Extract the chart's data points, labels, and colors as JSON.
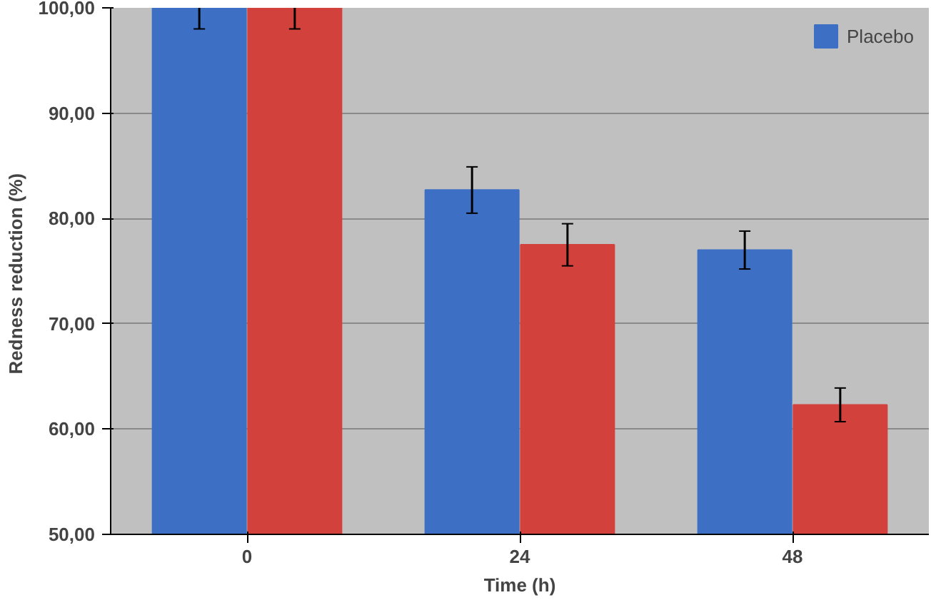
{
  "chart_data": {
    "type": "bar",
    "xlabel": "Time (h)",
    "ylabel": "Redness  reduction (%)",
    "categories": [
      "0",
      "24",
      "48"
    ],
    "series": [
      {
        "name": "Placebo",
        "color": "#3d6fc4",
        "values": [
          100,
          82.7,
          77.0
        ],
        "errors": [
          2,
          2.2,
          1.8
        ]
      },
      {
        "color": "#d2413c",
        "values": [
          100,
          77.5,
          62.3
        ],
        "errors": [
          2,
          2.0,
          1.6
        ]
      }
    ],
    "ylim": [
      50,
      100
    ],
    "yticks": [
      {
        "value": 50,
        "label": "50,00"
      },
      {
        "value": 60,
        "label": "60,00"
      },
      {
        "value": 70,
        "label": "70,00"
      },
      {
        "value": 80,
        "label": "80,00"
      },
      {
        "value": 90,
        "label": "90,00"
      },
      {
        "value": 100,
        "label": "100,00"
      }
    ],
    "grid": "y",
    "legend": "top right"
  }
}
